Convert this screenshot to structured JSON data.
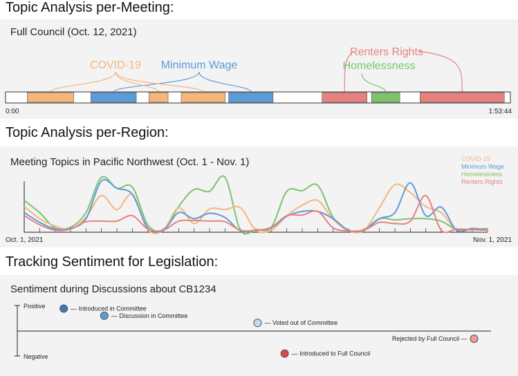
{
  "colors": {
    "covid": "#f4b67a",
    "wage": "#5b9bd8",
    "homeless": "#7cc36c",
    "renters": "#e88080",
    "panel_bg": "#f3f3f3"
  },
  "section1": {
    "heading": "Topic Analysis per-Meeting:",
    "panel_title": "Full Council (Oct. 12, 2021)",
    "timeline_start": "0:00",
    "timeline_end": "1:53:44",
    "labels": {
      "covid": "COVID-19",
      "wage": "Minimum Wage",
      "renters": "Renters Rights",
      "homeless": "Homelessness"
    },
    "segments": [
      {
        "topic": "covid",
        "start": 0.043,
        "end": 0.135
      },
      {
        "topic": "wage",
        "start": 0.169,
        "end": 0.259
      },
      {
        "topic": "covid",
        "start": 0.284,
        "end": 0.322
      },
      {
        "topic": "covid",
        "start": 0.348,
        "end": 0.435
      },
      {
        "topic": "wage",
        "start": 0.442,
        "end": 0.53
      },
      {
        "topic": "renters",
        "start": 0.627,
        "end": 0.716
      },
      {
        "topic": "homeless",
        "start": 0.725,
        "end": 0.781
      },
      {
        "topic": "renters",
        "start": 0.821,
        "end": 0.988
      }
    ]
  },
  "section2": {
    "heading": "Topic Analysis per-Region:",
    "panel_title": "Meeting Topics in Pacific Northwest (Oct. 1 - Nov. 1)",
    "x_start": "Oct. 1, 2021",
    "x_end": "Nov. 1, 2021"
  },
  "chart_data": {
    "type": "line",
    "title": "Meeting Topics in Pacific Northwest (Oct. 1 - Nov. 1)",
    "x_range": [
      "Oct. 1, 2021",
      "Nov. 1, 2021"
    ],
    "grid": false,
    "legend_position": "top-right",
    "series": [
      {
        "name": "COVID-19",
        "color": "#f4b67a",
        "values": [
          0.4,
          0.2,
          0.08,
          0.03,
          0.22,
          0.58,
          0.35,
          0.6,
          0.02,
          0.01,
          0.38,
          0.12,
          0.36,
          0.35,
          0.38,
          0.01,
          0.01,
          0.25,
          0.42,
          0.5,
          0.19,
          0.0,
          0.01,
          0.38,
          0.76,
          0.63,
          0.4,
          0.3,
          0.01,
          0.02,
          0.02
        ]
      },
      {
        "name": "Minimum Wage",
        "color": "#5b9bd8",
        "values": [
          0.3,
          0.14,
          0.03,
          0.04,
          0.2,
          0.82,
          0.7,
          0.6,
          0.05,
          0.01,
          0.3,
          0.2,
          0.29,
          0.22,
          0.0,
          0.01,
          0.05,
          0.24,
          0.32,
          0.32,
          0.2,
          0.01,
          0.01,
          0.2,
          0.3,
          0.79,
          0.25,
          0.39,
          0.01,
          0.04,
          0.01
        ]
      },
      {
        "name": "Homelessness",
        "color": "#7cc36c",
        "values": [
          0.5,
          0.3,
          0.05,
          0.06,
          0.3,
          0.88,
          0.7,
          0.72,
          0.1,
          0.02,
          0.4,
          0.68,
          0.65,
          0.88,
          0.01,
          0.02,
          0.06,
          0.65,
          0.66,
          0.75,
          0.22,
          0.01,
          0.02,
          0.2,
          0.18,
          0.2,
          0.2,
          0.16,
          0.02,
          0.02,
          0.04
        ]
      },
      {
        "name": "Renters Rights",
        "color": "#e88080",
        "values": [
          0.25,
          0.1,
          0.01,
          0.03,
          0.15,
          0.16,
          0.16,
          0.25,
          0.03,
          0.01,
          0.16,
          0.17,
          0.16,
          0.15,
          0.01,
          0.01,
          0.06,
          0.25,
          0.26,
          0.32,
          0.05,
          0.0,
          0.01,
          0.14,
          0.12,
          0.16,
          0.58,
          0.01,
          0.03,
          0.02,
          0.01
        ]
      }
    ]
  },
  "section3": {
    "heading": "Tracking Sentiment for Legislation:",
    "panel_title": "Sentiment during Discussions about CB1234",
    "positive_label": "Positive",
    "negative_label": "Negative",
    "events": [
      {
        "label": "Introduced in Committee",
        "sentiment": 0.88,
        "position": 0.08,
        "color": "#3a78c3",
        "label_side": "right"
      },
      {
        "label": "Discussion in Committee",
        "sentiment": 0.6,
        "position": 0.17,
        "color": "#5b9bd8",
        "label_side": "right"
      },
      {
        "label": "Voted out of Committee",
        "sentiment": 0.32,
        "position": 0.51,
        "color": "#c9d9ef",
        "label_side": "right"
      },
      {
        "label": "Introduced to Full Council",
        "sentiment": -0.88,
        "position": 0.57,
        "color": "#e04848",
        "label_side": "right"
      },
      {
        "label": "Rejected by Full Council",
        "sentiment": -0.3,
        "position": 0.99,
        "color": "#f09a9a",
        "label_side": "left"
      }
    ]
  }
}
